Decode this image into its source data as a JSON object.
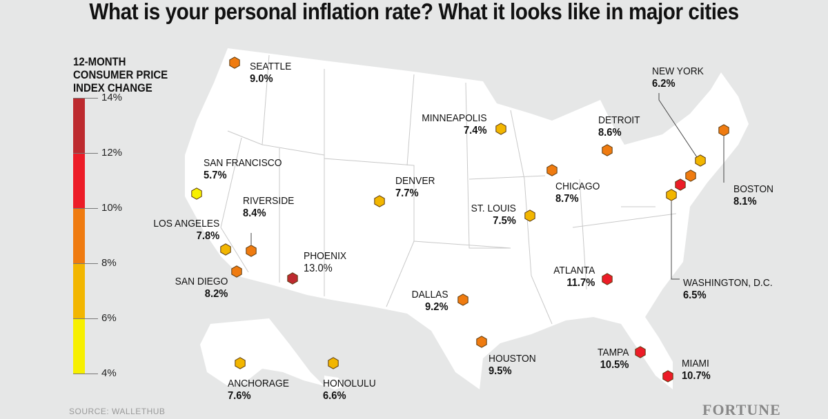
{
  "title": "What is your personal inflation rate? What it looks like in major cities",
  "legend": {
    "title_lines": [
      "12-MONTH",
      "CONSUMER PRICE",
      "INDEX CHANGE"
    ],
    "ticks": [
      "14%",
      "12%",
      "10%",
      "8%",
      "6%",
      "4%"
    ],
    "bands": [
      {
        "range": "12-14%",
        "color": "#bd2a2f"
      },
      {
        "range": "10-12%",
        "color": "#ec1c27"
      },
      {
        "range": "8-10%",
        "color": "#ef7b10"
      },
      {
        "range": "6-8%",
        "color": "#f2b600"
      },
      {
        "range": "4-6%",
        "color": "#f7f000"
      }
    ]
  },
  "cities": [
    {
      "name": "SEATTLE",
      "value": "9.0%",
      "color": "#ef7b10"
    },
    {
      "name": "SAN FRANCISCO",
      "value": "5.7%",
      "color": "#f7f000"
    },
    {
      "name": "RIVERSIDE",
      "value": "8.4%",
      "color": "#ef7b10"
    },
    {
      "name": "LOS ANGELES",
      "value": "7.8%",
      "color": "#f2b600"
    },
    {
      "name": "SAN DIEGO",
      "value": "8.2%",
      "color": "#ef7b10"
    },
    {
      "name": "PHOENIX",
      "value": "13.0%",
      "color": "#bd2a2f"
    },
    {
      "name": "DENVER",
      "value": "7.7%",
      "color": "#f2b600"
    },
    {
      "name": "DALLAS",
      "value": "9.2%",
      "color": "#ef7b10"
    },
    {
      "name": "HOUSTON",
      "value": "9.5%",
      "color": "#ef7b10"
    },
    {
      "name": "MINNEAPOLIS",
      "value": "7.4%",
      "color": "#f2b600"
    },
    {
      "name": "ST. LOUIS",
      "value": "7.5%",
      "color": "#f2b600"
    },
    {
      "name": "CHICAGO",
      "value": "8.7%",
      "color": "#ef7b10"
    },
    {
      "name": "DETROIT",
      "value": "8.6%",
      "color": "#ef7b10"
    },
    {
      "name": "ATLANTA",
      "value": "11.7%",
      "color": "#ec1c27"
    },
    {
      "name": "TAMPA",
      "value": "10.5%",
      "color": "#ec1c27"
    },
    {
      "name": "MIAMI",
      "value": "10.7%",
      "color": "#ec1c27"
    },
    {
      "name": "NEW YORK",
      "value": "6.2%",
      "color": "#f2b600"
    },
    {
      "name": "BOSTON",
      "value": "8.1%",
      "color": "#ef7b10"
    },
    {
      "name": "WASHINGTON, D.C.",
      "value": "6.5%",
      "color": "#f2b600"
    },
    {
      "name": "ANCHORAGE",
      "value": "7.6%",
      "color": "#f2b600"
    },
    {
      "name": "HONOLULU",
      "value": "6.6%",
      "color": "#f2b600"
    }
  ],
  "unlabeled_markers": [
    {
      "color": "#ef7b10"
    },
    {
      "color": "#ec1c27"
    }
  ],
  "source": "SOURCE: WALLETHUB",
  "logo": "FORTUNE"
}
